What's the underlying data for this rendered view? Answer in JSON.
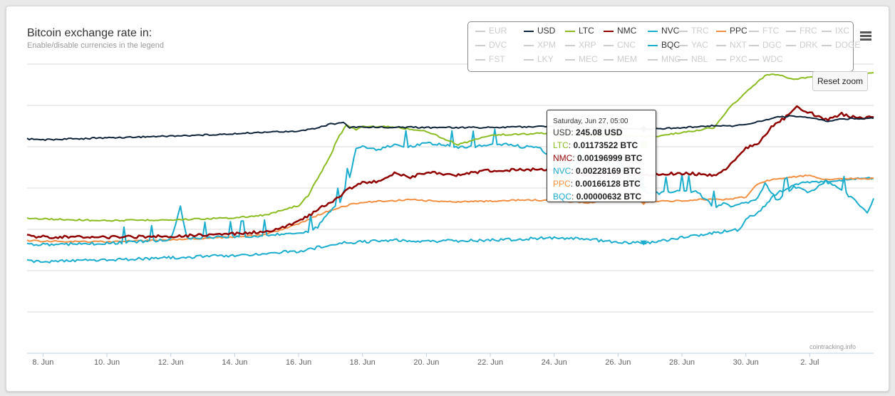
{
  "header": {
    "title": "Bitcoin exchange rate in:",
    "subtitle": "Enable/disable currencies in the legend"
  },
  "legend": {
    "items": [
      {
        "label": "EUR",
        "active": false,
        "color": "#cccccc"
      },
      {
        "label": "USD",
        "active": true,
        "color": "#0d233a"
      },
      {
        "label": "LTC",
        "active": true,
        "color": "#8bbc21"
      },
      {
        "label": "NMC",
        "active": true,
        "color": "#910000"
      },
      {
        "label": "NVC",
        "active": true,
        "color": "#1aadce"
      },
      {
        "label": "TRC",
        "active": false,
        "color": "#cccccc"
      },
      {
        "label": "PPC",
        "active": true,
        "color": "#f28f43"
      },
      {
        "label": "FTC",
        "active": false,
        "color": "#cccccc"
      },
      {
        "label": "FRC",
        "active": false,
        "color": "#cccccc"
      },
      {
        "label": "IXC",
        "active": false,
        "color": "#cccccc"
      },
      {
        "label": "DVC",
        "active": false,
        "color": "#cccccc"
      },
      {
        "label": "XPM",
        "active": false,
        "color": "#cccccc"
      },
      {
        "label": "XRP",
        "active": false,
        "color": "#cccccc"
      },
      {
        "label": "CNC",
        "active": false,
        "color": "#cccccc"
      },
      {
        "label": "BQC",
        "active": true,
        "color": "#1aadce"
      },
      {
        "label": "YAC",
        "active": false,
        "color": "#cccccc"
      },
      {
        "label": "NXT",
        "active": false,
        "color": "#cccccc"
      },
      {
        "label": "DGC",
        "active": false,
        "color": "#cccccc"
      },
      {
        "label": "DRK",
        "active": false,
        "color": "#cccccc"
      },
      {
        "label": "DOGE",
        "active": false,
        "color": "#cccccc"
      },
      {
        "label": "FST",
        "active": false,
        "color": "#cccccc"
      },
      {
        "label": "LKY",
        "active": false,
        "color": "#cccccc"
      },
      {
        "label": "MEC",
        "active": false,
        "color": "#cccccc"
      },
      {
        "label": "MEM",
        "active": false,
        "color": "#cccccc"
      },
      {
        "label": "MNC",
        "active": false,
        "color": "#cccccc"
      },
      {
        "label": "NBL",
        "active": false,
        "color": "#cccccc"
      },
      {
        "label": "PXC",
        "active": false,
        "color": "#cccccc"
      },
      {
        "label": "WDC",
        "active": false,
        "color": "#cccccc"
      }
    ]
  },
  "reset_zoom_label": "Reset zoom",
  "credits": "cointracking.info",
  "tooltip": {
    "date": "Saturday, Jun 27, 05:00",
    "rows": [
      {
        "name": "USD",
        "value": "245.08 USD",
        "color": "#333333"
      },
      {
        "name": "LTC",
        "value": "0.01173522 BTC",
        "color": "#8bbc21"
      },
      {
        "name": "NMC",
        "value": "0.00196999 BTC",
        "color": "#910000"
      },
      {
        "name": "NVC",
        "value": "0.00228169 BTC",
        "color": "#1aadce"
      },
      {
        "name": "PPC",
        "value": "0.00166128 BTC",
        "color": "#f28f43"
      },
      {
        "name": "BQC",
        "value": "0.00000632 BTC",
        "color": "#1aadce"
      }
    ]
  },
  "chart_data": {
    "type": "line",
    "title": "Bitcoin exchange rate in:",
    "subtitle": "Enable/disable currencies in the legend",
    "x_ticks": [
      "8. Jun",
      "10. Jun",
      "12. Jun",
      "14. Jun",
      "16. Jun",
      "18. Jun",
      "20. Jun",
      "22. Jun",
      "24. Jun",
      "26. Jun",
      "28. Jun",
      "30. Jun",
      "2. Jul"
    ],
    "x_tick_days": [
      8,
      10,
      12,
      14,
      16,
      18,
      20,
      22,
      24,
      26,
      28,
      30,
      32
    ],
    "x_range_days": [
      7.5,
      34.0
    ],
    "y_relative_range": [
      0,
      1
    ],
    "grid": true,
    "legend_position": "top-right",
    "tooltip_day": 26.8,
    "series": [
      {
        "name": "USD",
        "color": "#0d233a",
        "x": [
          7.5,
          8,
          10,
          12,
          14,
          15,
          16,
          16.5,
          17,
          17.4,
          17.6,
          18,
          20,
          22,
          24,
          26,
          27,
          28,
          29,
          29.5,
          30,
          30.5,
          31,
          31.5,
          32,
          32.5,
          33,
          34
        ],
        "y": [
          0.738,
          0.735,
          0.742,
          0.748,
          0.756,
          0.762,
          0.766,
          0.775,
          0.79,
          0.795,
          0.778,
          0.78,
          0.778,
          0.778,
          0.782,
          0.775,
          0.772,
          0.778,
          0.785,
          0.783,
          0.79,
          0.8,
          0.815,
          0.818,
          0.812,
          0.8,
          0.808,
          0.81
        ]
      },
      {
        "name": "LTC",
        "color": "#8bbc21",
        "x": [
          7.5,
          8,
          10,
          12,
          14,
          15,
          15.5,
          16,
          16.3,
          16.6,
          17,
          17.2,
          17.5,
          17.8,
          18,
          19,
          20,
          21,
          22,
          23,
          24,
          25,
          26,
          26.5,
          27,
          28,
          29,
          29.3,
          29.6,
          30,
          30.3,
          30.6,
          31,
          31.5,
          32,
          32.5,
          33,
          33.5,
          34
        ],
        "y": [
          0.46,
          0.458,
          0.452,
          0.455,
          0.462,
          0.472,
          0.49,
          0.505,
          0.54,
          0.6,
          0.68,
          0.735,
          0.788,
          0.77,
          0.782,
          0.78,
          0.765,
          0.718,
          0.752,
          0.755,
          0.76,
          0.748,
          0.752,
          0.748,
          0.745,
          0.76,
          0.778,
          0.82,
          0.86,
          0.9,
          0.93,
          0.96,
          0.965,
          0.945,
          0.955,
          0.96,
          0.945,
          0.965,
          0.97
        ]
      },
      {
        "name": "NMC",
        "color": "#910000",
        "x": [
          7.5,
          8,
          10,
          12,
          14,
          15,
          15.5,
          16,
          16.4,
          16.8,
          17.2,
          17.6,
          18,
          18.5,
          19,
          19.5,
          20,
          21,
          22,
          23,
          24,
          25,
          26,
          27,
          28,
          29,
          29.3,
          29.6,
          30,
          30.4,
          30.8,
          31.2,
          31.6,
          32,
          32.5,
          33,
          33.5,
          34
        ],
        "y": [
          0.398,
          0.395,
          0.394,
          0.398,
          0.406,
          0.414,
          0.428,
          0.448,
          0.475,
          0.505,
          0.53,
          0.565,
          0.585,
          0.59,
          0.62,
          0.605,
          0.62,
          0.612,
          0.628,
          0.63,
          0.632,
          0.61,
          0.618,
          0.612,
          0.618,
          0.612,
          0.625,
          0.655,
          0.705,
          0.725,
          0.78,
          0.81,
          0.85,
          0.83,
          0.805,
          0.825,
          0.81,
          0.815
        ]
      },
      {
        "name": "NVC",
        "color": "#1aadce",
        "x": [
          7.5,
          8,
          10,
          11,
          12,
          12.3,
          12.5,
          13,
          14,
          15,
          16,
          16.3,
          16.6,
          17,
          17.3,
          17.6,
          17.8,
          18,
          18.5,
          19,
          19.5,
          20,
          21,
          22,
          22.5,
          23,
          23.5,
          24,
          24.5,
          25,
          26,
          27,
          27.5,
          28,
          28.5,
          29,
          29.3,
          29.6,
          30,
          30.3,
          30.6,
          31,
          31.5,
          32,
          32.5,
          33,
          33.5,
          33.8,
          34
        ],
        "y": [
          0.37,
          0.368,
          0.372,
          0.378,
          0.385,
          0.5,
          0.39,
          0.392,
          0.395,
          0.4,
          0.41,
          0.412,
          0.43,
          0.485,
          0.52,
          0.6,
          0.708,
          0.712,
          0.7,
          0.718,
          0.71,
          0.725,
          0.708,
          0.715,
          0.72,
          0.71,
          0.712,
          0.655,
          0.62,
          0.69,
          0.64,
          0.545,
          0.55,
          0.56,
          0.55,
          0.5,
          0.51,
          0.502,
          0.515,
          0.52,
          0.58,
          0.52,
          0.57,
          0.55,
          0.59,
          0.558,
          0.515,
          0.48,
          0.53
        ]
      },
      {
        "name": "PPC",
        "color": "#f28f43",
        "x": [
          7.5,
          8,
          10,
          12,
          14,
          15,
          15.5,
          16,
          16.4,
          16.8,
          17.2,
          17.6,
          18,
          18.5,
          19,
          19.5,
          20,
          21,
          22,
          23,
          24,
          25,
          26,
          26.5,
          27,
          28,
          29,
          29.3,
          29.6,
          30,
          30.3,
          30.6,
          31,
          31.5,
          32,
          32.5,
          33,
          33.5,
          34
        ],
        "y": [
          0.382,
          0.38,
          0.378,
          0.385,
          0.395,
          0.405,
          0.422,
          0.44,
          0.462,
          0.48,
          0.496,
          0.508,
          0.515,
          0.52,
          0.522,
          0.525,
          0.522,
          0.518,
          0.52,
          0.525,
          0.522,
          0.515,
          0.522,
          0.52,
          0.518,
          0.522,
          0.528,
          0.525,
          0.53,
          0.535,
          0.575,
          0.59,
          0.6,
          0.605,
          0.61,
          0.595,
          0.6,
          0.598,
          0.6
        ]
      },
      {
        "name": "BQC",
        "color": "#1aadce",
        "x": [
          7.5,
          8,
          10,
          12,
          14,
          15,
          16,
          16.5,
          17,
          17.5,
          18,
          19,
          20,
          22,
          24,
          25,
          26,
          27,
          28,
          29,
          29.4,
          29.8,
          30,
          30.4,
          30.8,
          31,
          31.5,
          32,
          32.5,
          33,
          33.5,
          34
        ],
        "y": [
          0.31,
          0.308,
          0.315,
          0.322,
          0.33,
          0.338,
          0.345,
          0.355,
          0.37,
          0.375,
          0.378,
          0.385,
          0.38,
          0.383,
          0.392,
          0.388,
          0.375,
          0.375,
          0.392,
          0.41,
          0.415,
          0.42,
          0.46,
          0.48,
          0.53,
          0.55,
          0.575,
          0.588,
          0.59,
          0.595,
          0.598,
          0.6
        ]
      }
    ]
  }
}
